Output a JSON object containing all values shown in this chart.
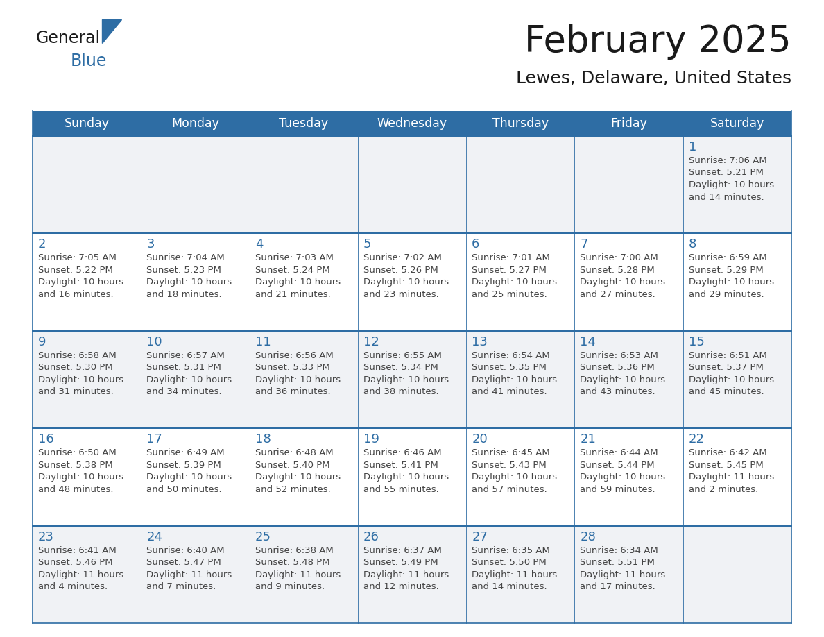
{
  "title": "February 2025",
  "subtitle": "Lewes, Delaware, United States",
  "header_color": "#2E6DA4",
  "header_text_color": "#FFFFFF",
  "day_names": [
    "Sunday",
    "Monday",
    "Tuesday",
    "Wednesday",
    "Thursday",
    "Friday",
    "Saturday"
  ],
  "title_color": "#1a1a1a",
  "subtitle_color": "#1a1a1a",
  "cell_bg_light": "#f0f2f5",
  "cell_bg_white": "#ffffff",
  "cell_line_color": "#2E6DA4",
  "day_num_color": "#2E6DA4",
  "text_color": "#444444",
  "logo_text_general": "General",
  "logo_text_blue": "Blue",
  "logo_color_general": "#1a1a1a",
  "logo_color_blue": "#2E6DA4",
  "logo_triangle_color": "#2E6DA4",
  "calendar": [
    [
      null,
      null,
      null,
      null,
      null,
      null,
      {
        "day": 1,
        "sunrise": "7:06 AM",
        "sunset": "5:21 PM",
        "daylight_line1": "Daylight: 10 hours",
        "daylight_line2": "and 14 minutes."
      }
    ],
    [
      {
        "day": 2,
        "sunrise": "7:05 AM",
        "sunset": "5:22 PM",
        "daylight_line1": "Daylight: 10 hours",
        "daylight_line2": "and 16 minutes."
      },
      {
        "day": 3,
        "sunrise": "7:04 AM",
        "sunset": "5:23 PM",
        "daylight_line1": "Daylight: 10 hours",
        "daylight_line2": "and 18 minutes."
      },
      {
        "day": 4,
        "sunrise": "7:03 AM",
        "sunset": "5:24 PM",
        "daylight_line1": "Daylight: 10 hours",
        "daylight_line2": "and 21 minutes."
      },
      {
        "day": 5,
        "sunrise": "7:02 AM",
        "sunset": "5:26 PM",
        "daylight_line1": "Daylight: 10 hours",
        "daylight_line2": "and 23 minutes."
      },
      {
        "day": 6,
        "sunrise": "7:01 AM",
        "sunset": "5:27 PM",
        "daylight_line1": "Daylight: 10 hours",
        "daylight_line2": "and 25 minutes."
      },
      {
        "day": 7,
        "sunrise": "7:00 AM",
        "sunset": "5:28 PM",
        "daylight_line1": "Daylight: 10 hours",
        "daylight_line2": "and 27 minutes."
      },
      {
        "day": 8,
        "sunrise": "6:59 AM",
        "sunset": "5:29 PM",
        "daylight_line1": "Daylight: 10 hours",
        "daylight_line2": "and 29 minutes."
      }
    ],
    [
      {
        "day": 9,
        "sunrise": "6:58 AM",
        "sunset": "5:30 PM",
        "daylight_line1": "Daylight: 10 hours",
        "daylight_line2": "and 31 minutes."
      },
      {
        "day": 10,
        "sunrise": "6:57 AM",
        "sunset": "5:31 PM",
        "daylight_line1": "Daylight: 10 hours",
        "daylight_line2": "and 34 minutes."
      },
      {
        "day": 11,
        "sunrise": "6:56 AM",
        "sunset": "5:33 PM",
        "daylight_line1": "Daylight: 10 hours",
        "daylight_line2": "and 36 minutes."
      },
      {
        "day": 12,
        "sunrise": "6:55 AM",
        "sunset": "5:34 PM",
        "daylight_line1": "Daylight: 10 hours",
        "daylight_line2": "and 38 minutes."
      },
      {
        "day": 13,
        "sunrise": "6:54 AM",
        "sunset": "5:35 PM",
        "daylight_line1": "Daylight: 10 hours",
        "daylight_line2": "and 41 minutes."
      },
      {
        "day": 14,
        "sunrise": "6:53 AM",
        "sunset": "5:36 PM",
        "daylight_line1": "Daylight: 10 hours",
        "daylight_line2": "and 43 minutes."
      },
      {
        "day": 15,
        "sunrise": "6:51 AM",
        "sunset": "5:37 PM",
        "daylight_line1": "Daylight: 10 hours",
        "daylight_line2": "and 45 minutes."
      }
    ],
    [
      {
        "day": 16,
        "sunrise": "6:50 AM",
        "sunset": "5:38 PM",
        "daylight_line1": "Daylight: 10 hours",
        "daylight_line2": "and 48 minutes."
      },
      {
        "day": 17,
        "sunrise": "6:49 AM",
        "sunset": "5:39 PM",
        "daylight_line1": "Daylight: 10 hours",
        "daylight_line2": "and 50 minutes."
      },
      {
        "day": 18,
        "sunrise": "6:48 AM",
        "sunset": "5:40 PM",
        "daylight_line1": "Daylight: 10 hours",
        "daylight_line2": "and 52 minutes."
      },
      {
        "day": 19,
        "sunrise": "6:46 AM",
        "sunset": "5:41 PM",
        "daylight_line1": "Daylight: 10 hours",
        "daylight_line2": "and 55 minutes."
      },
      {
        "day": 20,
        "sunrise": "6:45 AM",
        "sunset": "5:43 PM",
        "daylight_line1": "Daylight: 10 hours",
        "daylight_line2": "and 57 minutes."
      },
      {
        "day": 21,
        "sunrise": "6:44 AM",
        "sunset": "5:44 PM",
        "daylight_line1": "Daylight: 10 hours",
        "daylight_line2": "and 59 minutes."
      },
      {
        "day": 22,
        "sunrise": "6:42 AM",
        "sunset": "5:45 PM",
        "daylight_line1": "Daylight: 11 hours",
        "daylight_line2": "and 2 minutes."
      }
    ],
    [
      {
        "day": 23,
        "sunrise": "6:41 AM",
        "sunset": "5:46 PM",
        "daylight_line1": "Daylight: 11 hours",
        "daylight_line2": "and 4 minutes."
      },
      {
        "day": 24,
        "sunrise": "6:40 AM",
        "sunset": "5:47 PM",
        "daylight_line1": "Daylight: 11 hours",
        "daylight_line2": "and 7 minutes."
      },
      {
        "day": 25,
        "sunrise": "6:38 AM",
        "sunset": "5:48 PM",
        "daylight_line1": "Daylight: 11 hours",
        "daylight_line2": "and 9 minutes."
      },
      {
        "day": 26,
        "sunrise": "6:37 AM",
        "sunset": "5:49 PM",
        "daylight_line1": "Daylight: 11 hours",
        "daylight_line2": "and 12 minutes."
      },
      {
        "day": 27,
        "sunrise": "6:35 AM",
        "sunset": "5:50 PM",
        "daylight_line1": "Daylight: 11 hours",
        "daylight_line2": "and 14 minutes."
      },
      {
        "day": 28,
        "sunrise": "6:34 AM",
        "sunset": "5:51 PM",
        "daylight_line1": "Daylight: 11 hours",
        "daylight_line2": "and 17 minutes."
      },
      null
    ]
  ]
}
